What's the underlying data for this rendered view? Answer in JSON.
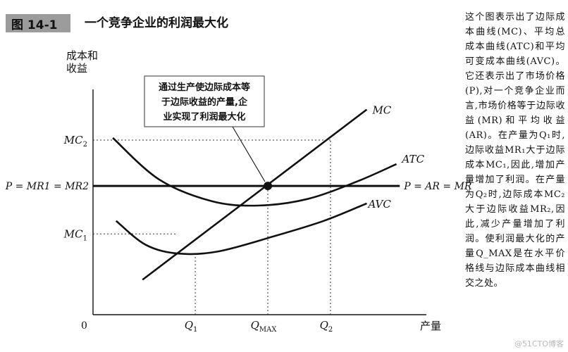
{
  "header": {
    "figure_label": "图 14-1",
    "title": "一个竞争企业的利润最大化"
  },
  "sidebar_text": "这个图表示出了边际成本曲线(MC)、平均总成本曲线(ATC)和平均可变成本曲线(AVC)。它还表示出了市场价格(P),对一个竞争企业而言,市场价格等于边际收益(MR)和平均收益(AR)。在产量为Q₁时,边际收益MR₁大于边际成本MC₁,因此,增加产量增加了利润。在产量为Q₂时,边际成本MC₂大于边际收益MR₂,因此,减少产量增加了利润。使利润最大化的产量Q_MAX是在水平价格线与边际成本曲线相交之处。",
  "watermark": "@51CTO博客",
  "chart_data": {
    "type": "line",
    "ylabel_lines": [
      "成本和",
      "收益"
    ],
    "xlabel": "产量",
    "origin_label": "0",
    "xlim": [
      0,
      10
    ],
    "ylim": [
      0,
      10
    ],
    "x_ticks": [
      {
        "label": "Q1",
        "sub": "1",
        "base": "Q",
        "x": 3.1
      },
      {
        "label": "QMAX",
        "sub": "MAX",
        "base": "Q",
        "x": 5.3
      },
      {
        "label": "Q2",
        "sub": "2",
        "base": "Q",
        "x": 7.2
      }
    ],
    "y_ticks": [
      {
        "label": "MC2",
        "base": "MC",
        "sub": "2",
        "y": 8.0
      },
      {
        "label": "MC1",
        "base": "MC",
        "sub": "1",
        "y": 3.7
      }
    ],
    "price_line": {
      "y": 5.9,
      "left_label": "P = MR1 = MR2",
      "right_label": "P = AR = MR"
    },
    "series": [
      {
        "name": "MC",
        "x": [
          1.5,
          8.3
        ],
        "y": [
          1.6,
          9.4
        ]
      },
      {
        "name": "ATC",
        "x": [
          0.6,
          2.0,
          3.6,
          5.0,
          6.5,
          8.0,
          9.2
        ],
        "y": [
          8.1,
          6.2,
          5.2,
          5.0,
          5.3,
          6.1,
          6.9
        ]
      },
      {
        "name": "AVC",
        "x": [
          0.7,
          1.6,
          2.6,
          3.8,
          5.5,
          7.0,
          8.3
        ],
        "y": [
          4.3,
          3.2,
          2.8,
          2.9,
          3.6,
          4.3,
          5.1
        ]
      }
    ],
    "annotation": {
      "lines": [
        "通过生产使边际成本等",
        "于边际收益的产量,企",
        "业实现了利润最大化"
      ],
      "points_to": [
        5.3,
        5.9
      ]
    }
  }
}
